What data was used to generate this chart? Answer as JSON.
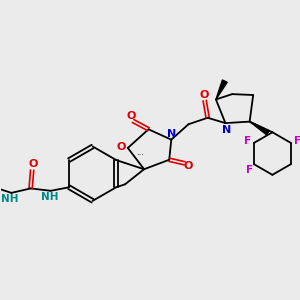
{
  "background_color": "#ebebeb",
  "figsize": [
    3.0,
    3.0
  ],
  "dpi": 100,
  "colors": {
    "black": "#000000",
    "red": "#dd0000",
    "blue": "#0000cc",
    "teal": "#008888",
    "magenta": "#cc00cc"
  },
  "layout": {
    "xlim": [
      0,
      10
    ],
    "ylim": [
      0,
      10
    ]
  }
}
